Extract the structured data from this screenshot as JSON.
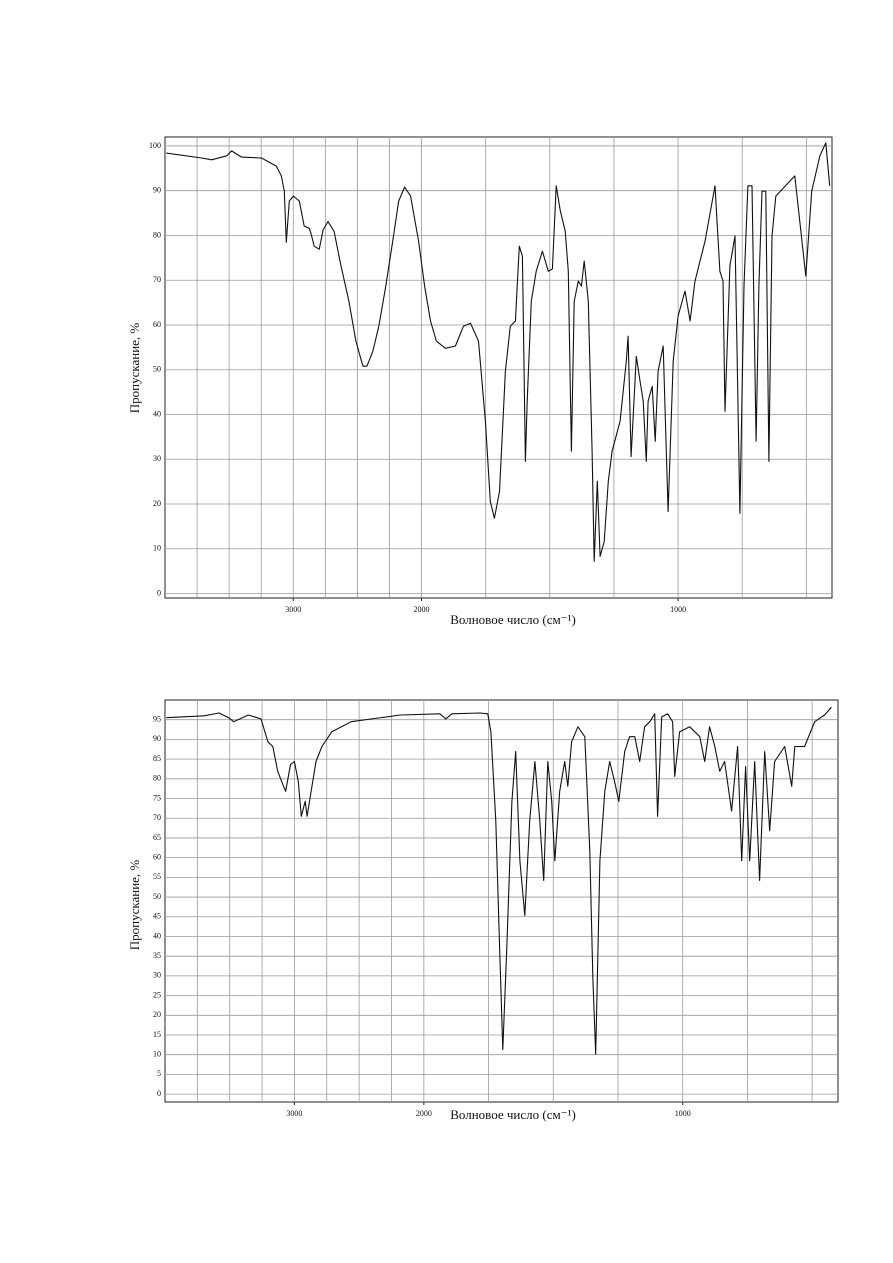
{
  "chart_data": [
    {
      "type": "line",
      "color": "#111111",
      "grid": true,
      "y_label": "Пропускание, %",
      "x_label": "Волновое число (см⁻¹)",
      "xlim": [
        4000,
        400
      ],
      "xbreak": 2000,
      "xbreak_factor": 2,
      "xticks": [
        3000,
        2000,
        1000
      ],
      "xgrid": [
        3750,
        3500,
        3250,
        3000,
        2750,
        2500,
        2250,
        2000,
        1750,
        1500,
        1250,
        1000,
        750,
        500
      ],
      "ylim": [
        -1,
        102
      ],
      "yticks": [
        0,
        10,
        20,
        30,
        40,
        50,
        60,
        70,
        80,
        90,
        100
      ],
      "x": [
        3990,
        3713,
        3636,
        3519,
        3481,
        3403,
        3248,
        3132,
        3093,
        3070,
        3054,
        3031,
        3000,
        2953,
        2915,
        2876,
        2860,
        2837,
        2798,
        2767,
        2729,
        2682,
        2628,
        2566,
        2512,
        2457,
        2426,
        2380,
        2333,
        2279,
        2225,
        2178,
        2132,
        2085,
        2023,
        1988,
        1965,
        1942,
        1907,
        1868,
        1837,
        1809,
        1778,
        1751,
        1732,
        1716,
        1696,
        1673,
        1654,
        1634,
        1619,
        1607,
        1595,
        1588,
        1572,
        1553,
        1529,
        1506,
        1490,
        1475,
        1459,
        1440,
        1428,
        1416,
        1405,
        1389,
        1377,
        1366,
        1350,
        1335,
        1327,
        1315,
        1304,
        1288,
        1272,
        1257,
        1226,
        1202,
        1195,
        1183,
        1163,
        1148,
        1136,
        1124,
        1117,
        1101,
        1089,
        1078,
        1058,
        1039,
        1019,
        1000,
        973,
        953,
        934,
        895,
        856,
        837,
        825,
        817,
        798,
        778,
        759,
        743,
        728,
        712,
        696,
        685,
        673,
        658,
        646,
        634,
        619,
        545,
        502,
        479,
        447,
        424,
        409
      ],
      "values": [
        98.4,
        97.3,
        96.9,
        97.8,
        98.9,
        97.5,
        97.3,
        95.5,
        93.3,
        89.9,
        78.5,
        87.7,
        88.8,
        87.7,
        82.1,
        81.6,
        80.3,
        77.6,
        76.9,
        81.3,
        83.1,
        80.9,
        73.2,
        65.3,
        56.4,
        50.8,
        50.8,
        54.1,
        59.7,
        68.7,
        78.7,
        87.7,
        90.8,
        88.8,
        78.7,
        68.7,
        60.9,
        56.4,
        54.8,
        55.3,
        59.7,
        60.4,
        56.4,
        38.5,
        20.6,
        16.8,
        22.8,
        49.7,
        59.7,
        60.9,
        77.6,
        75.4,
        29.5,
        43,
        65.3,
        72,
        76.5,
        72,
        72.5,
        91.1,
        85.5,
        81,
        72,
        31.8,
        65.3,
        69.8,
        68.7,
        74.3,
        65.3,
        31.8,
        7.2,
        25.1,
        8.3,
        11.6,
        25.1,
        31.8,
        38.5,
        51.9,
        57.5,
        30.6,
        53,
        47.4,
        43,
        29.5,
        43,
        46.3,
        34,
        49.7,
        55.3,
        18.3,
        51.9,
        62,
        67.6,
        60.9,
        69.8,
        78.7,
        91.1,
        72,
        69.8,
        40.7,
        73.2,
        79.9,
        17.9,
        68.7,
        91.1,
        91.1,
        34,
        68.7,
        89.9,
        89.9,
        29.5,
        79.9,
        88.8,
        93.3,
        70.9,
        89.9,
        97.8,
        100.7,
        91.1
      ]
    },
    {
      "type": "line",
      "color": "#111111",
      "grid": true,
      "y_label": "Пропускание, %",
      "x_label": "Волновое число (см⁻¹)",
      "xlim": [
        4000,
        400
      ],
      "xbreak": 2000,
      "xbreak_factor": 2,
      "xticks": [
        3000,
        2000,
        1000
      ],
      "xgrid": [
        3750,
        3500,
        3250,
        3000,
        2750,
        2500,
        2250,
        2000,
        1750,
        1500,
        1250,
        1000,
        750,
        500
      ],
      "ylim": [
        -2,
        100
      ],
      "yticks": [
        0,
        5,
        10,
        15,
        20,
        25,
        30,
        35,
        40,
        45,
        50,
        55,
        60,
        65,
        70,
        75,
        80,
        85,
        90,
        95
      ],
      "x": [
        3990,
        3697,
        3583,
        3508,
        3470,
        3356,
        3258,
        3205,
        3167,
        3129,
        3068,
        3030,
        3000,
        2970,
        2947,
        2917,
        2902,
        2871,
        2833,
        2788,
        2712,
        2561,
        2182,
        1938,
        1915,
        1892,
        1784,
        1753,
        1741,
        1722,
        1707,
        1695,
        1680,
        1660,
        1645,
        1629,
        1610,
        1591,
        1571,
        1552,
        1537,
        1521,
        1506,
        1494,
        1475,
        1456,
        1444,
        1429,
        1405,
        1378,
        1359,
        1347,
        1336,
        1320,
        1301,
        1282,
        1263,
        1247,
        1224,
        1205,
        1185,
        1166,
        1147,
        1127,
        1108,
        1097,
        1081,
        1058,
        1039,
        1031,
        1012,
        973,
        934,
        915,
        896,
        876,
        857,
        838,
        811,
        788,
        772,
        757,
        741,
        722,
        703,
        683,
        664,
        645,
        606,
        579,
        567,
        529,
        490,
        452,
        425
      ],
      "values": [
        95.5,
        96,
        96.7,
        95.5,
        94.5,
        96.2,
        95.2,
        89.4,
        88.2,
        81.9,
        76.8,
        83.6,
        84.4,
        79.3,
        70.5,
        74.3,
        70.5,
        76.8,
        84.4,
        88.2,
        91.9,
        94.5,
        96.2,
        96.5,
        95.2,
        96.5,
        96.7,
        96.5,
        91.9,
        69.3,
        36.5,
        11.3,
        36.5,
        74.3,
        86.9,
        59.2,
        45.3,
        69.3,
        84.4,
        69.3,
        54.2,
        84.4,
        74.3,
        59.2,
        76.8,
        84.4,
        78.1,
        89.4,
        93.2,
        90.7,
        61.7,
        29,
        10.1,
        59.2,
        76.8,
        84.4,
        79.3,
        74.3,
        86.9,
        90.7,
        90.7,
        84.4,
        93.2,
        94.5,
        96.5,
        70.5,
        95.7,
        96.5,
        94.5,
        80.6,
        91.9,
        93.2,
        90.7,
        84.4,
        93.2,
        88.2,
        81.9,
        84.4,
        71.8,
        88.2,
        59.2,
        83.1,
        59.2,
        84.4,
        54.2,
        86.9,
        66.8,
        84.4,
        88.2,
        78.1,
        88.2,
        88.2,
        94.5,
        96.2,
        98.2
      ]
    }
  ]
}
